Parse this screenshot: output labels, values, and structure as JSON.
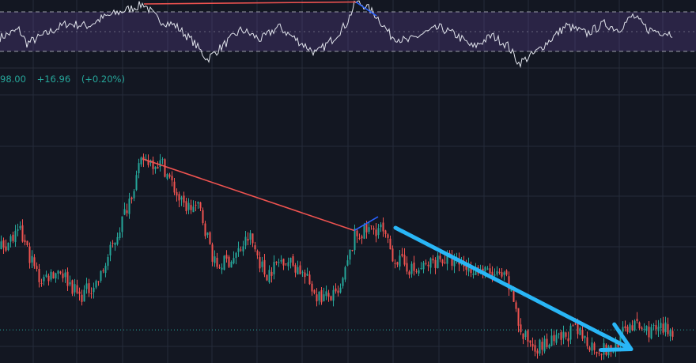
{
  "chart_data": [
    {
      "type": "line",
      "panel": "oscillator",
      "reference_levels": [
        70,
        50,
        30
      ],
      "band": [
        30,
        70
      ],
      "ylim": [
        18,
        82
      ],
      "grid": true,
      "key_points": [
        {
          "x": 0,
          "y": 44
        },
        {
          "x": 24,
          "y": 52
        },
        {
          "x": 34,
          "y": 38
        },
        {
          "x": 64,
          "y": 50
        },
        {
          "x": 84,
          "y": 58
        },
        {
          "x": 112,
          "y": 56
        },
        {
          "x": 130,
          "y": 64
        },
        {
          "x": 152,
          "y": 70
        },
        {
          "x": 168,
          "y": 74
        },
        {
          "x": 182,
          "y": 78
        },
        {
          "x": 200,
          "y": 62
        },
        {
          "x": 222,
          "y": 56
        },
        {
          "x": 244,
          "y": 40
        },
        {
          "x": 262,
          "y": 22
        },
        {
          "x": 285,
          "y": 38
        },
        {
          "x": 305,
          "y": 52
        },
        {
          "x": 330,
          "y": 42
        },
        {
          "x": 352,
          "y": 55
        },
        {
          "x": 378,
          "y": 40
        },
        {
          "x": 400,
          "y": 28
        },
        {
          "x": 420,
          "y": 42
        },
        {
          "x": 438,
          "y": 58
        },
        {
          "x": 450,
          "y": 80
        },
        {
          "x": 462,
          "y": 76
        },
        {
          "x": 476,
          "y": 66
        },
        {
          "x": 494,
          "y": 46
        },
        {
          "x": 515,
          "y": 40
        },
        {
          "x": 535,
          "y": 48
        },
        {
          "x": 556,
          "y": 54
        },
        {
          "x": 578,
          "y": 46
        },
        {
          "x": 598,
          "y": 34
        },
        {
          "x": 622,
          "y": 46
        },
        {
          "x": 642,
          "y": 36
        },
        {
          "x": 656,
          "y": 18
        },
        {
          "x": 676,
          "y": 28
        },
        {
          "x": 696,
          "y": 42
        },
        {
          "x": 716,
          "y": 56
        },
        {
          "x": 742,
          "y": 48
        },
        {
          "x": 764,
          "y": 58
        },
        {
          "x": 782,
          "y": 52
        },
        {
          "x": 800,
          "y": 66
        },
        {
          "x": 820,
          "y": 52
        },
        {
          "x": 850,
          "y": 48
        }
      ],
      "annotations": [
        {
          "kind": "trendline",
          "color": "#ef5350",
          "from": {
            "x": 182,
            "y": 78
          },
          "to": {
            "x": 450,
            "y": 80
          }
        },
        {
          "kind": "trendline",
          "color": "#2962ff",
          "from": {
            "x": 450,
            "y": 80
          },
          "to": {
            "x": 476,
            "y": 66
          }
        }
      ]
    },
    {
      "type": "candlestick",
      "panel": "price",
      "readout": {
        "close": "98.00",
        "change": "+16.96",
        "change_pct": "(+0.20%)"
      },
      "ylim": [
        0,
        100
      ],
      "grid": true,
      "colors": {
        "up": "#26a69a",
        "down": "#ef5350"
      },
      "last_price_line": 12,
      "key_points": [
        {
          "x": 0,
          "y": 42
        },
        {
          "x": 25,
          "y": 47
        },
        {
          "x": 50,
          "y": 30
        },
        {
          "x": 75,
          "y": 34
        },
        {
          "x": 100,
          "y": 24
        },
        {
          "x": 125,
          "y": 30
        },
        {
          "x": 152,
          "y": 50
        },
        {
          "x": 180,
          "y": 74
        },
        {
          "x": 205,
          "y": 72
        },
        {
          "x": 230,
          "y": 57
        },
        {
          "x": 252,
          "y": 56
        },
        {
          "x": 272,
          "y": 35
        },
        {
          "x": 295,
          "y": 38
        },
        {
          "x": 315,
          "y": 46
        },
        {
          "x": 335,
          "y": 32
        },
        {
          "x": 358,
          "y": 38
        },
        {
          "x": 378,
          "y": 34
        },
        {
          "x": 402,
          "y": 24
        },
        {
          "x": 428,
          "y": 24
        },
        {
          "x": 448,
          "y": 46
        },
        {
          "x": 465,
          "y": 48
        },
        {
          "x": 480,
          "y": 49
        },
        {
          "x": 498,
          "y": 38
        },
        {
          "x": 525,
          "y": 33
        },
        {
          "x": 555,
          "y": 38
        },
        {
          "x": 582,
          "y": 36
        },
        {
          "x": 612,
          "y": 33
        },
        {
          "x": 640,
          "y": 30
        },
        {
          "x": 652,
          "y": 20
        },
        {
          "x": 658,
          "y": 10
        },
        {
          "x": 680,
          "y": 6
        },
        {
          "x": 705,
          "y": 8
        },
        {
          "x": 725,
          "y": 12
        },
        {
          "x": 750,
          "y": 6
        },
        {
          "x": 772,
          "y": 4
        },
        {
          "x": 795,
          "y": 14
        },
        {
          "x": 815,
          "y": 12
        },
        {
          "x": 850,
          "y": 12
        }
      ],
      "annotations": [
        {
          "kind": "trendline",
          "color": "#ef5350",
          "from": {
            "x": 180,
            "y": 74
          },
          "to": {
            "x": 448,
            "y": 48
          }
        },
        {
          "kind": "trendline",
          "color": "#2962ff",
          "from": {
            "x": 448,
            "y": 48
          },
          "to": {
            "x": 478,
            "y": 53
          }
        },
        {
          "kind": "arrow",
          "color": "#29b6f6",
          "from": {
            "x": 500,
            "y": 49
          },
          "to": {
            "x": 798,
            "y": 5
          }
        }
      ]
    }
  ]
}
